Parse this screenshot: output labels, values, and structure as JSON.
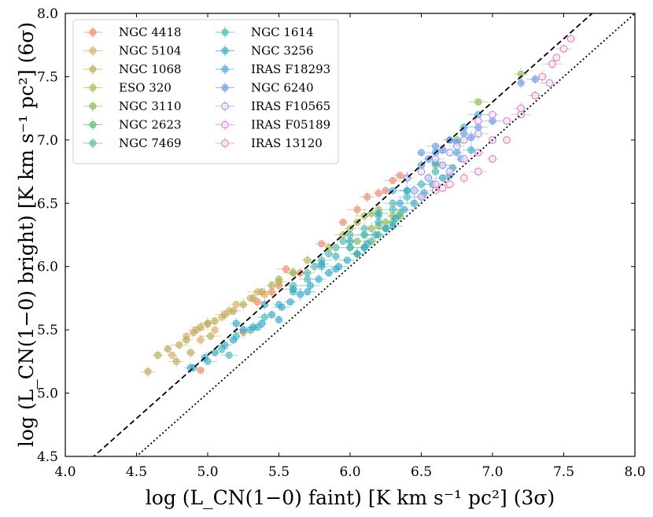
{
  "chart_data": {
    "type": "scatter",
    "title": "",
    "xlabel": "log (L_CN(1−0) faint) [K km s⁻¹ pc²] (3σ)",
    "ylabel": "log (L_CN(1−0) bright) [K km s⁻¹ pc²] (6σ)",
    "xlim": [
      4.0,
      8.0
    ],
    "ylim": [
      4.5,
      8.0
    ],
    "x_ticks": [
      "4.0",
      "4.5",
      "5.0",
      "5.5",
      "6.0",
      "6.5",
      "7.0",
      "7.5",
      "8.0"
    ],
    "y_ticks": [
      "4.5",
      "5.0",
      "5.5",
      "6.0",
      "6.5",
      "7.0",
      "7.5",
      "8.0"
    ],
    "legend_position": "top-left",
    "reference_lines": [
      {
        "name": "dashed",
        "style": "dashed",
        "slope": 1.0,
        "intercept": 0.3
      },
      {
        "name": "dotted",
        "style": "dotted",
        "slope": 1.0,
        "intercept": 0.0
      }
    ],
    "series": [
      {
        "name": "NGC 4418",
        "color": "#ee8866",
        "marker": "circle",
        "points": [
          [
            4.95,
            5.18
          ],
          [
            5.25,
            5.48
          ],
          [
            5.35,
            5.72
          ],
          [
            5.5,
            5.85
          ],
          [
            5.55,
            5.98
          ],
          [
            5.8,
            6.18
          ],
          [
            5.95,
            6.35
          ],
          [
            6.05,
            6.45
          ],
          [
            6.12,
            6.55
          ],
          [
            6.2,
            6.58
          ],
          [
            6.25,
            6.6
          ],
          [
            6.3,
            6.68
          ],
          [
            6.35,
            6.72
          ],
          [
            5.45,
            5.8
          ],
          [
            5.65,
            5.95
          ]
        ]
      },
      {
        "name": "NGC 5104",
        "color": "#ddaa66",
        "marker": "circle",
        "points": [
          [
            4.75,
            5.3
          ],
          [
            4.85,
            5.45
          ],
          [
            4.92,
            5.5
          ],
          [
            5.0,
            5.55
          ],
          [
            5.1,
            5.6
          ],
          [
            5.15,
            5.65
          ],
          [
            5.2,
            5.7
          ],
          [
            5.3,
            5.75
          ],
          [
            5.35,
            5.8
          ],
          [
            5.4,
            5.78
          ],
          [
            4.95,
            5.42
          ],
          [
            5.05,
            5.5
          ]
        ]
      },
      {
        "name": "NGC 1068",
        "color": "#bbaa55",
        "marker": "circle",
        "points": [
          [
            4.58,
            5.17
          ],
          [
            4.65,
            5.3
          ],
          [
            4.72,
            5.35
          ],
          [
            4.8,
            5.38
          ],
          [
            4.85,
            5.42
          ],
          [
            4.9,
            5.48
          ],
          [
            4.95,
            5.52
          ],
          [
            5.0,
            5.55
          ],
          [
            5.05,
            5.57
          ],
          [
            5.12,
            5.62
          ],
          [
            5.18,
            5.65
          ],
          [
            5.25,
            5.7
          ],
          [
            5.32,
            5.75
          ],
          [
            5.38,
            5.8
          ],
          [
            5.45,
            5.85
          ],
          [
            5.5,
            5.9
          ],
          [
            5.6,
            5.95
          ],
          [
            4.78,
            5.25
          ],
          [
            4.88,
            5.32
          ],
          [
            5.02,
            5.45
          ]
        ]
      },
      {
        "name": "ESO 320",
        "color": "#aabb55",
        "marker": "circle",
        "points": [
          [
            5.5,
            5.88
          ],
          [
            5.6,
            5.95
          ],
          [
            5.7,
            6.05
          ],
          [
            5.85,
            6.15
          ],
          [
            5.95,
            6.25
          ],
          [
            6.0,
            6.3
          ],
          [
            6.05,
            6.35
          ],
          [
            6.1,
            6.4
          ],
          [
            6.15,
            6.42
          ],
          [
            6.2,
            6.45
          ]
        ]
      },
      {
        "name": "NGC 3110",
        "color": "#88bb55",
        "marker": "circle",
        "points": [
          [
            6.0,
            6.15
          ],
          [
            6.05,
            6.2
          ],
          [
            6.1,
            6.25
          ],
          [
            6.15,
            6.3
          ],
          [
            6.2,
            6.32
          ],
          [
            6.25,
            6.35
          ],
          [
            6.3,
            6.4
          ],
          [
            6.35,
            6.42
          ],
          [
            6.9,
            7.3
          ],
          [
            7.2,
            7.52
          ],
          [
            6.6,
            6.8
          ],
          [
            6.75,
            7.0
          ]
        ]
      },
      {
        "name": "NGC 2623",
        "color": "#55bb77",
        "marker": "circle",
        "points": [
          [
            6.1,
            6.15
          ],
          [
            6.15,
            6.2
          ],
          [
            6.2,
            6.25
          ],
          [
            6.25,
            6.3
          ],
          [
            6.3,
            6.35
          ],
          [
            6.35,
            6.4
          ],
          [
            6.05,
            6.1
          ]
        ]
      },
      {
        "name": "NGC 7469",
        "color": "#55bbaa",
        "marker": "circle",
        "points": [
          [
            5.6,
            5.85
          ],
          [
            5.7,
            5.95
          ],
          [
            5.75,
            6.0
          ],
          [
            5.8,
            6.05
          ],
          [
            5.85,
            6.1
          ],
          [
            5.9,
            6.15
          ],
          [
            5.95,
            6.2
          ],
          [
            6.0,
            6.25
          ],
          [
            6.1,
            6.3
          ],
          [
            6.2,
            6.4
          ],
          [
            6.3,
            6.5
          ],
          [
            6.4,
            6.6
          ]
        ]
      },
      {
        "name": "NGC 1614",
        "color": "#44bbbb",
        "marker": "circle",
        "points": [
          [
            4.9,
            5.2
          ],
          [
            5.0,
            5.25
          ],
          [
            5.1,
            5.35
          ],
          [
            5.2,
            5.45
          ],
          [
            5.3,
            5.5
          ],
          [
            5.4,
            5.6
          ],
          [
            5.5,
            5.7
          ],
          [
            5.6,
            5.8
          ],
          [
            5.7,
            5.9
          ],
          [
            5.8,
            6.0
          ],
          [
            5.9,
            6.08
          ],
          [
            6.0,
            6.15
          ],
          [
            6.1,
            6.25
          ],
          [
            6.2,
            6.35
          ],
          [
            6.3,
            6.45
          ],
          [
            6.4,
            6.55
          ],
          [
            6.5,
            6.65
          ],
          [
            6.6,
            6.75
          ],
          [
            5.15,
            5.3
          ],
          [
            5.35,
            5.52
          ]
        ]
      },
      {
        "name": "NGC 3256",
        "color": "#33aacc",
        "marker": "circle",
        "points": [
          [
            4.88,
            5.2
          ],
          [
            4.98,
            5.28
          ],
          [
            5.05,
            5.32
          ],
          [
            5.12,
            5.38
          ],
          [
            5.18,
            5.42
          ],
          [
            5.25,
            5.5
          ],
          [
            5.32,
            5.52
          ],
          [
            5.38,
            5.55
          ],
          [
            5.45,
            5.62
          ],
          [
            5.52,
            5.68
          ],
          [
            5.58,
            5.72
          ],
          [
            5.65,
            5.78
          ],
          [
            5.72,
            5.85
          ],
          [
            5.78,
            5.9
          ],
          [
            5.85,
            5.95
          ],
          [
            5.92,
            6.0
          ],
          [
            5.98,
            6.05
          ],
          [
            6.05,
            6.1
          ],
          [
            6.12,
            6.18
          ],
          [
            6.18,
            6.25
          ],
          [
            6.25,
            6.3
          ],
          [
            6.32,
            6.38
          ],
          [
            6.38,
            6.45
          ],
          [
            6.45,
            6.5
          ],
          [
            6.52,
            6.58
          ],
          [
            6.58,
            6.65
          ],
          [
            6.65,
            6.7
          ],
          [
            6.72,
            6.78
          ],
          [
            6.78,
            6.85
          ],
          [
            6.85,
            6.92
          ],
          [
            5.2,
            5.55
          ],
          [
            5.4,
            5.7
          ],
          [
            5.6,
            5.82
          ],
          [
            5.8,
            6.02
          ],
          [
            6.0,
            6.2
          ],
          [
            6.2,
            6.42
          ],
          [
            6.4,
            6.6
          ],
          [
            6.6,
            6.82
          ],
          [
            5.5,
            5.58
          ],
          [
            5.7,
            5.8
          ],
          [
            5.9,
            5.98
          ],
          [
            6.1,
            6.15
          ],
          [
            6.3,
            6.32
          ],
          [
            6.5,
            6.55
          ],
          [
            6.7,
            6.72
          ]
        ]
      },
      {
        "name": "IRAS F18293",
        "color": "#44aadd",
        "marker": "circle",
        "points": [
          [
            6.3,
            6.6
          ],
          [
            6.4,
            6.7
          ],
          [
            6.5,
            6.8
          ],
          [
            6.6,
            6.9
          ],
          [
            6.7,
            7.0
          ],
          [
            6.8,
            7.1
          ],
          [
            6.9,
            7.2
          ],
          [
            6.35,
            6.5
          ],
          [
            6.45,
            6.6
          ],
          [
            6.55,
            6.7
          ],
          [
            6.65,
            6.8
          ],
          [
            6.75,
            6.9
          ]
        ]
      },
      {
        "name": "NGC 6240",
        "color": "#6699ee",
        "marker": "circle",
        "points": [
          [
            6.5,
            6.9
          ],
          [
            6.6,
            6.95
          ],
          [
            6.7,
            7.0
          ],
          [
            6.8,
            7.05
          ],
          [
            6.9,
            7.1
          ],
          [
            7.0,
            7.15
          ],
          [
            6.55,
            6.85
          ],
          [
            6.65,
            6.92
          ],
          [
            6.75,
            6.98
          ],
          [
            6.85,
            7.02
          ],
          [
            7.2,
            7.45
          ],
          [
            7.3,
            7.48
          ]
        ]
      },
      {
        "name": "IRAS F10565",
        "color": "#aa99ee",
        "marker": "circle-open",
        "points": [
          [
            6.4,
            6.7
          ],
          [
            6.5,
            6.75
          ],
          [
            6.6,
            6.85
          ],
          [
            6.7,
            6.9
          ],
          [
            6.8,
            7.0
          ],
          [
            6.9,
            7.05
          ],
          [
            6.45,
            6.6
          ],
          [
            6.55,
            6.7
          ],
          [
            6.65,
            6.8
          ],
          [
            6.75,
            6.95
          ]
        ]
      },
      {
        "name": "IRAS F05189",
        "color": "#dd88ee",
        "marker": "circle-open",
        "points": [
          [
            6.5,
            6.55
          ],
          [
            6.6,
            6.65
          ],
          [
            6.7,
            6.75
          ],
          [
            6.8,
            6.85
          ],
          [
            6.9,
            6.9
          ],
          [
            7.0,
            7.0
          ],
          [
            7.1,
            7.15
          ],
          [
            7.2,
            7.25
          ],
          [
            7.3,
            7.35
          ],
          [
            7.4,
            7.45
          ],
          [
            6.9,
            7.15
          ],
          [
            7.0,
            7.2
          ]
        ]
      },
      {
        "name": "IRAS 13120",
        "color": "#ee88bb",
        "marker": "circle-open",
        "points": [
          [
            6.6,
            6.6
          ],
          [
            6.65,
            6.62
          ],
          [
            6.7,
            6.65
          ],
          [
            6.8,
            6.7
          ],
          [
            6.9,
            6.75
          ],
          [
            7.0,
            6.85
          ],
          [
            7.1,
            7.0
          ],
          [
            7.2,
            7.2
          ],
          [
            7.3,
            7.35
          ],
          [
            7.35,
            7.5
          ],
          [
            7.42,
            7.6
          ],
          [
            7.5,
            7.72
          ],
          [
            7.55,
            7.8
          ],
          [
            7.45,
            7.65
          ]
        ]
      }
    ]
  }
}
